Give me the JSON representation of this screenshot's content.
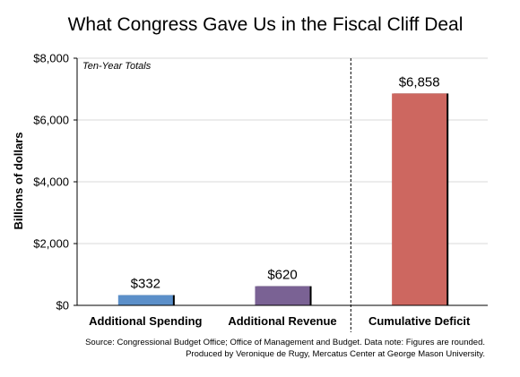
{
  "chart_data": {
    "type": "bar",
    "title": "What Congress Gave Us in the Fiscal Cliff Deal",
    "ylabel": "Billions of dollars",
    "annotation": "Ten-Year Totals",
    "categories": [
      "Additional Spending",
      "Additional Revenue",
      "Cumulative Deficit"
    ],
    "values": [
      332,
      620,
      6858
    ],
    "data_labels": [
      "$332",
      "$620",
      "$6,858"
    ],
    "colors": [
      "#5b8fc9",
      "#7a6294",
      "#cd6760"
    ],
    "ylim": [
      0,
      8000
    ],
    "yticks": [
      0,
      2000,
      4000,
      6000,
      8000
    ],
    "ytick_labels": [
      "$0",
      "$2,000",
      "$4,000",
      "$6,000",
      "$8,000"
    ],
    "grid": true,
    "legend": "none",
    "separator_after_category": 2,
    "source_lines": [
      "Source: Congressional Budget Office; Office of Management and Budget. Data note: Figures are rounded.",
      "Produced by Veronique de Rugy, Mercatus Center at George Mason University."
    ]
  }
}
